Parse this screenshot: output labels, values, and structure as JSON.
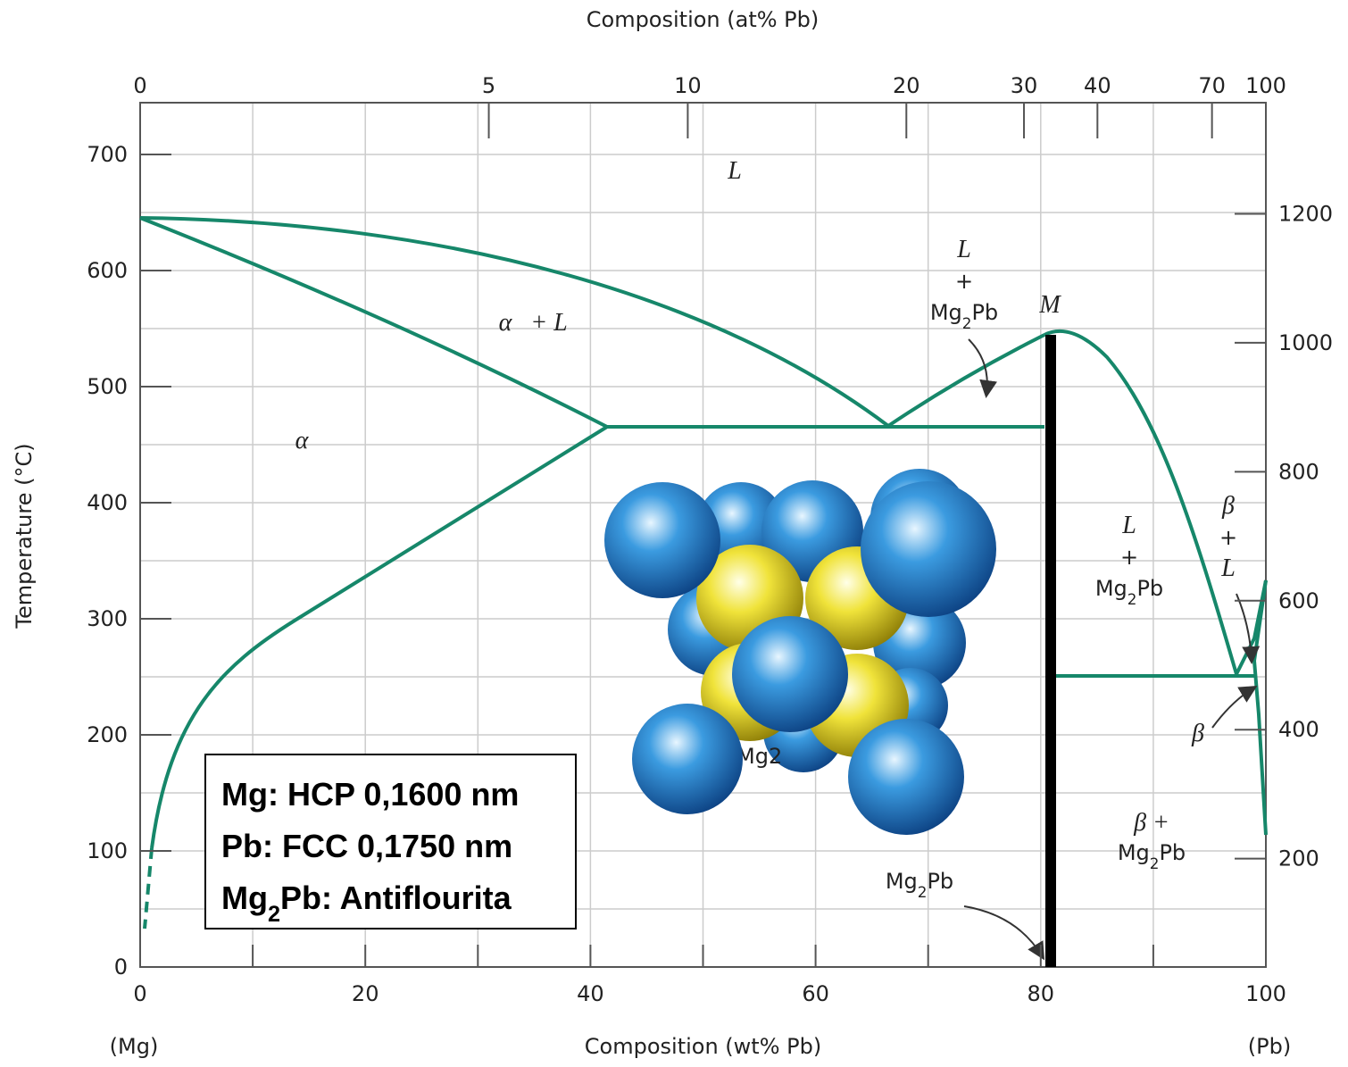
{
  "top_axis": {
    "title": "Composition (at% Pb)",
    "ticks": [
      0,
      5,
      10,
      20,
      30,
      40,
      70,
      100
    ]
  },
  "bottom_axis": {
    "title": "Composition (wt% Pb)",
    "ticks": [
      0,
      20,
      40,
      60,
      80,
      100
    ],
    "left_end": "(Mg)",
    "right_end": "(Pb)"
  },
  "left_axis": {
    "title": "Temperature (°C)",
    "ticks": [
      0,
      100,
      200,
      300,
      400,
      500,
      600,
      700
    ]
  },
  "right_axis": {
    "ticks": [
      200,
      400,
      600,
      800,
      1000,
      1200
    ]
  },
  "regions": {
    "liquid": "L",
    "alpha_liquid": [
      "α",
      "+ L"
    ],
    "alpha": "α",
    "liquid_mg2pb_left": [
      "L",
      "+",
      {
        "pre": "Mg",
        "sub": "2",
        "post": "Pb"
      }
    ],
    "max_point": "M",
    "liquid_mg2pb_right": [
      "L",
      "+",
      {
        "pre": "Mg",
        "sub": "2",
        "post": "Pb"
      }
    ],
    "beta_liquid": [
      "β",
      "+",
      "L"
    ],
    "beta": "β",
    "beta_mg2pb": [
      "β +",
      {
        "pre": "Mg",
        "sub": "2",
        "post": "Pb"
      }
    ],
    "mg2pb": {
      "pre": "Mg",
      "sub": "2",
      "post": "Pb"
    },
    "hidden_label": "Mg2"
  },
  "info_box": {
    "lines": [
      {
        "pre": "Mg: HCP 0,1600 nm"
      },
      {
        "pre": "Pb: FCC 0,1750 nm"
      },
      {
        "pre": "Mg",
        "sub": "2",
        "post": "Pb: Antiflourita"
      }
    ]
  }
}
